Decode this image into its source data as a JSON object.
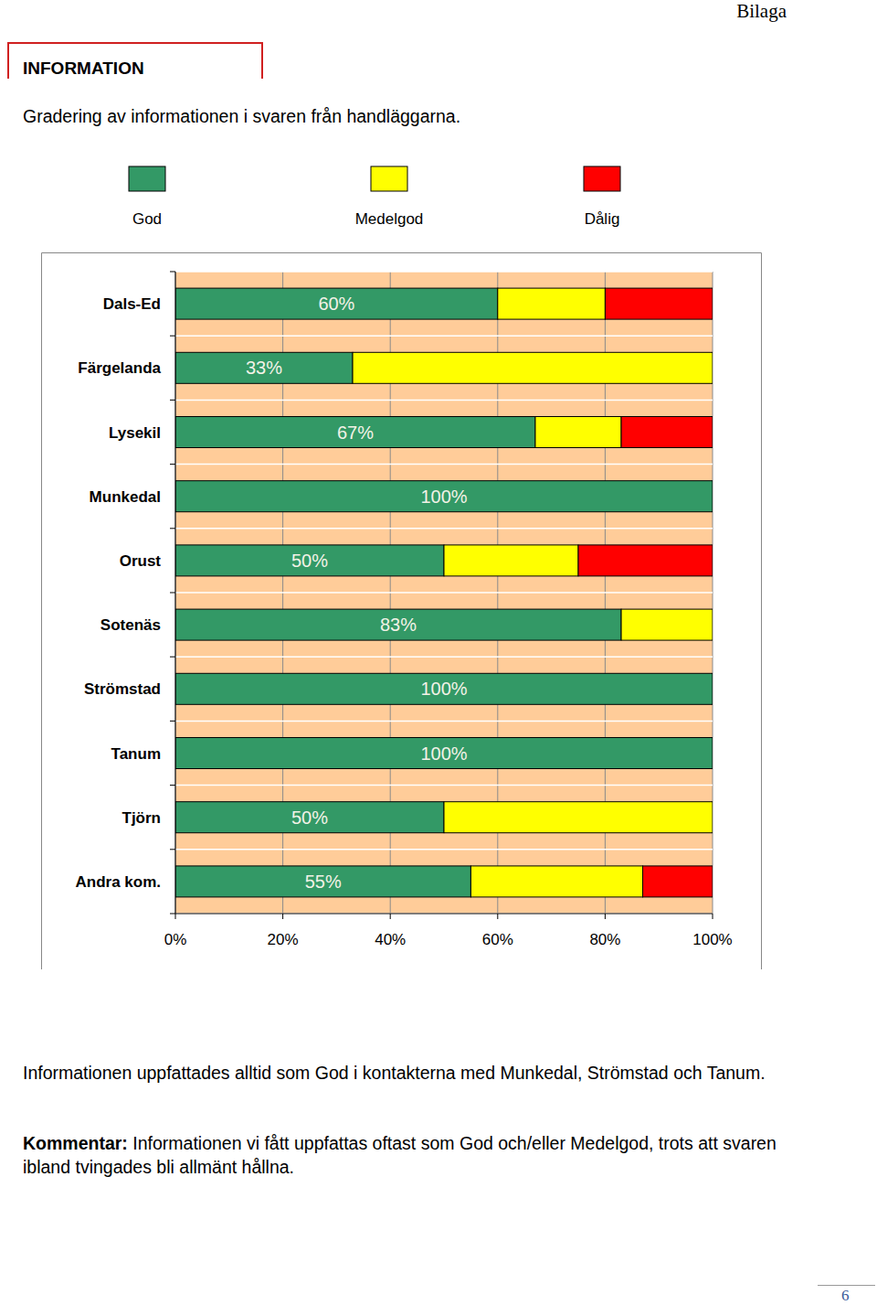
{
  "page": {
    "header": "Bilaga",
    "section": "INFORMATION",
    "intro": "Gradering av informationen i svaren från handläggarna.",
    "paragraph": "Informationen uppfattades alltid som God i kontakterna med Munkedal, Strömstad och Tanum.",
    "comment_label": "Kommentar:",
    "comment": "Informationen vi fått uppfattas oftast som God och/eller Medelgod, trots att svaren ibland tvingades bli allmänt hållna.",
    "page_number": 6
  },
  "chart_data": {
    "type": "bar",
    "orientation": "horizontal",
    "stacked": true,
    "grid": true,
    "legend": "top",
    "data_labels": true,
    "categories": [
      "Dals-Ed",
      "Färgelanda",
      "Lysekil",
      "Munkedal",
      "Orust",
      "Sotenäs",
      "Strömstad",
      "Tanum",
      "Tjörn",
      "Andra kom."
    ],
    "series": [
      {
        "name": "God",
        "color": "#339966",
        "values": [
          60,
          33,
          67,
          100,
          50,
          83,
          100,
          100,
          50,
          55
        ],
        "value_labels": [
          "60%",
          "33%",
          "67%",
          "100%",
          "50%",
          "83%",
          "100%",
          "100%",
          "50%",
          "55%"
        ]
      },
      {
        "name": "Medelgod",
        "color": "#ffff00",
        "values": [
          20,
          67,
          16,
          0,
          25,
          17,
          0,
          0,
          50,
          32
        ]
      },
      {
        "name": "Dålig",
        "color": "#ff0000",
        "values": [
          20,
          0,
          17,
          0,
          25,
          0,
          0,
          0,
          0,
          13
        ]
      }
    ],
    "xlim": [
      0,
      100
    ],
    "xticks": [
      {
        "value": 0,
        "label": "0%"
      },
      {
        "value": 20,
        "label": "20%"
      },
      {
        "value": 40,
        "label": "40%"
      },
      {
        "value": 60,
        "label": "60%"
      },
      {
        "value": 80,
        "label": "80%"
      },
      {
        "value": 100,
        "label": "100%"
      }
    ]
  }
}
